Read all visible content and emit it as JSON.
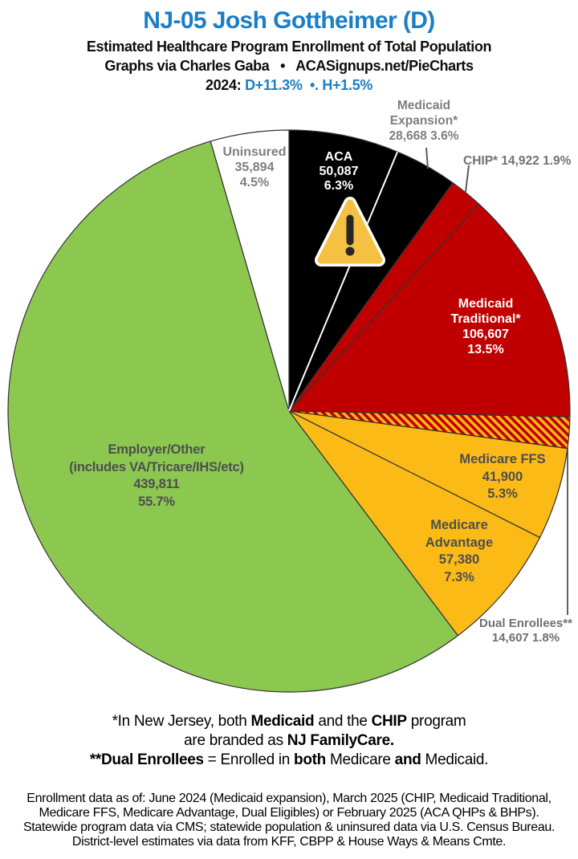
{
  "header": {
    "title": "NJ-05 Josh Gottheimer (D)",
    "subtitle": "Estimated Healthcare Program Enrollment of Total Population",
    "credit": "Graphs via Charles Gaba   •   ACASignups.net/PieCharts",
    "partisan_segments": [
      {
        "t": "2024: ",
        "b": 1,
        "c": "#0d0d0d"
      },
      {
        "t": "D+11.3%",
        "b": 1,
        "c": "#1B7EC6"
      },
      {
        "t": "  •. ",
        "b": 1,
        "c": "#1B7EC6"
      },
      {
        "t": "H+1.5%",
        "b": 1,
        "c": "#1B7EC6"
      }
    ]
  },
  "chart_data": {
    "type": "pie",
    "title": "Estimated Healthcare Program Enrollment of Total Population",
    "units": "people",
    "start_angle_deg": 0,
    "direction": "clockwise",
    "series": [
      {
        "name": "ACA",
        "value": 50087,
        "pct": 6.3,
        "color": "#000000"
      },
      {
        "name": "Medicaid Expansion*",
        "value": 28668,
        "pct": 3.6,
        "color": "#000000"
      },
      {
        "name": "CHIP*",
        "value": 14922,
        "pct": 1.9,
        "color": "#C00000"
      },
      {
        "name": "Medicaid Traditional*",
        "value": 106607,
        "pct": 13.5,
        "color": "#C00000"
      },
      {
        "name": "Dual Enrollees**",
        "value": 14607,
        "pct": 1.8,
        "color": "hatch-red-gold"
      },
      {
        "name": "Medicare FFS",
        "value": 41900,
        "pct": 5.3,
        "color": "#FBBA16"
      },
      {
        "name": "Medicare Advantage",
        "value": 57380,
        "pct": 7.3,
        "color": "#FBBA16"
      },
      {
        "name": "Employer/Other (includes VA/Tricare/IHS/etc)",
        "value": 439811,
        "pct": 55.7,
        "color": "#8CC850"
      },
      {
        "name": "Uninsured",
        "value": 35894,
        "pct": 4.5,
        "color": "#FFFFFF"
      }
    ],
    "colors": {
      "black": "#000000",
      "red": "#C00000",
      "gold": "#FBBA16",
      "green": "#8CC850",
      "white": "#FFFFFF",
      "title_blue": "#1B7EC6"
    }
  },
  "pie_labels": {
    "uninsured": {
      "lines": [
        "Uninsured",
        "35,894",
        "4.5%"
      ]
    },
    "aca": {
      "lines": [
        "ACA",
        "50,087",
        "6.3%"
      ]
    },
    "medicaid_expansion": {
      "lines": [
        "Medicaid",
        "Expansion*",
        "28,668 3.6%"
      ]
    },
    "chip": {
      "lines": [
        "CHIP* 14,922 1.9%"
      ]
    },
    "medicaid_traditional": {
      "lines": [
        "Medicaid",
        "Traditional*",
        "106,607",
        "13.5%"
      ]
    },
    "medicare_ffs": {
      "lines": [
        "Medicare FFS",
        "41,900",
        "5.3%"
      ]
    },
    "medicare_advantage": {
      "lines": [
        "Medicare",
        "Advantage",
        "57,380",
        "7.3%"
      ]
    },
    "dual_enrollees": {
      "lines": [
        "Dual Enrollees**",
        "14,607 1.8%"
      ]
    },
    "employer": {
      "lines": [
        "Employer/Other",
        "(includes VA/Tricare/IHS/etc)",
        "439,811",
        "55.7%"
      ]
    }
  },
  "footnote1": {
    "line1_segments": [
      {
        "t": "*In New Jersey, both "
      },
      {
        "t": "Medicaid",
        "b": 1
      },
      {
        "t": " and the "
      },
      {
        "t": "CHIP",
        "b": 1
      },
      {
        "t": " program"
      }
    ],
    "line2_segments": [
      {
        "t": "are branded as "
      },
      {
        "t": "NJ FamilyCare.",
        "b": 1
      }
    ],
    "line3_segments": [
      {
        "t": "**Dual Enrollees",
        "b": 1
      },
      {
        "t": " = Enrolled in "
      },
      {
        "t": "both",
        "b": 1
      },
      {
        "t": " Medicare "
      },
      {
        "t": "and",
        "b": 1
      },
      {
        "t": " Medicaid."
      }
    ]
  },
  "footnote2": {
    "lines": [
      "Enrollment data as of: June 2024 (Medicaid expansion), March 2025 (CHIP, Medicaid Traditional,",
      "Medicare FFS, Medicare Advantage, Dual Eligibles) or February 2025 (ACA QHPs & BHPs).",
      "Statewide program data via CMS; statewide population & uninsured data via U.S. Census Bureau.",
      "District-level estimates via data from KFF, CBPP & House Ways & Means Cmte."
    ]
  }
}
